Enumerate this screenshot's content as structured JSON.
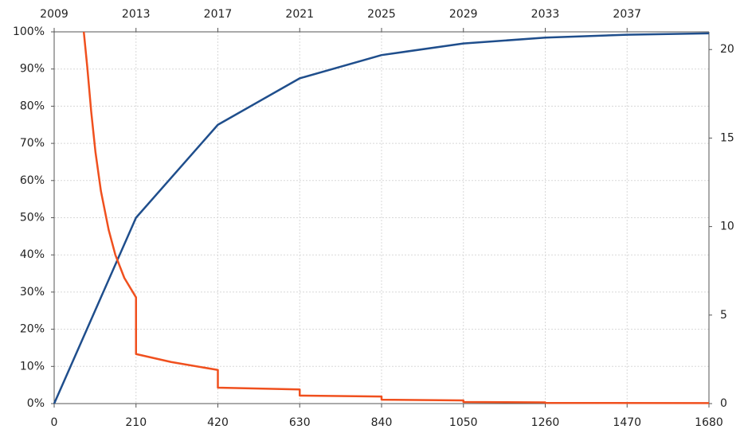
{
  "chart_data": {
    "type": "line",
    "xlim": [
      0,
      1680
    ],
    "xticks": [
      0,
      210,
      420,
      630,
      840,
      1050,
      1260,
      1470,
      1680
    ],
    "x2lim": [
      2009,
      2041
    ],
    "x2ticks": [
      2009,
      2013,
      2017,
      2021,
      2025,
      2029,
      2033,
      2037
    ],
    "ylim": [
      0,
      100
    ],
    "yticks": [
      {
        "value": 0,
        "label": "0%"
      },
      {
        "value": 10,
        "label": "10%"
      },
      {
        "value": 20,
        "label": "20%"
      },
      {
        "value": 30,
        "label": "30%"
      },
      {
        "value": 40,
        "label": "40%"
      },
      {
        "value": 50,
        "label": "50%"
      },
      {
        "value": 60,
        "label": "60%"
      },
      {
        "value": 70,
        "label": "70%"
      },
      {
        "value": 80,
        "label": "80%"
      },
      {
        "value": 90,
        "label": "90%"
      },
      {
        "value": 100,
        "label": "100%"
      }
    ],
    "y2lim": [
      0,
      21
    ],
    "y2ticks": [
      0,
      5,
      10,
      15,
      20
    ],
    "grid": true,
    "series": [
      {
        "color": "#1f4e8c",
        "x": [
          0,
          210,
          420,
          630,
          840,
          1050,
          1260,
          1470,
          1680
        ],
        "values": [
          0,
          50,
          75,
          87.5,
          93.75,
          96.875,
          98.4375,
          99.21875,
          99.6
        ]
      },
      {
        "color": "#f0501e",
        "axis": "y2",
        "x": [
          76,
          85,
          95,
          106,
          120,
          140,
          157,
          180,
          210,
          210,
          300,
          420,
          420,
          630,
          630,
          840,
          840,
          1050,
          1050,
          1260,
          1260,
          1680
        ],
        "values": [
          21,
          19,
          16.5,
          14.2,
          12,
          9.8,
          8.4,
          7.1,
          6.0,
          2.8,
          2.35,
          1.9,
          0.9,
          0.8,
          0.45,
          0.4,
          0.22,
          0.18,
          0.09,
          0.07,
          0.04,
          0.03
        ]
      }
    ]
  }
}
